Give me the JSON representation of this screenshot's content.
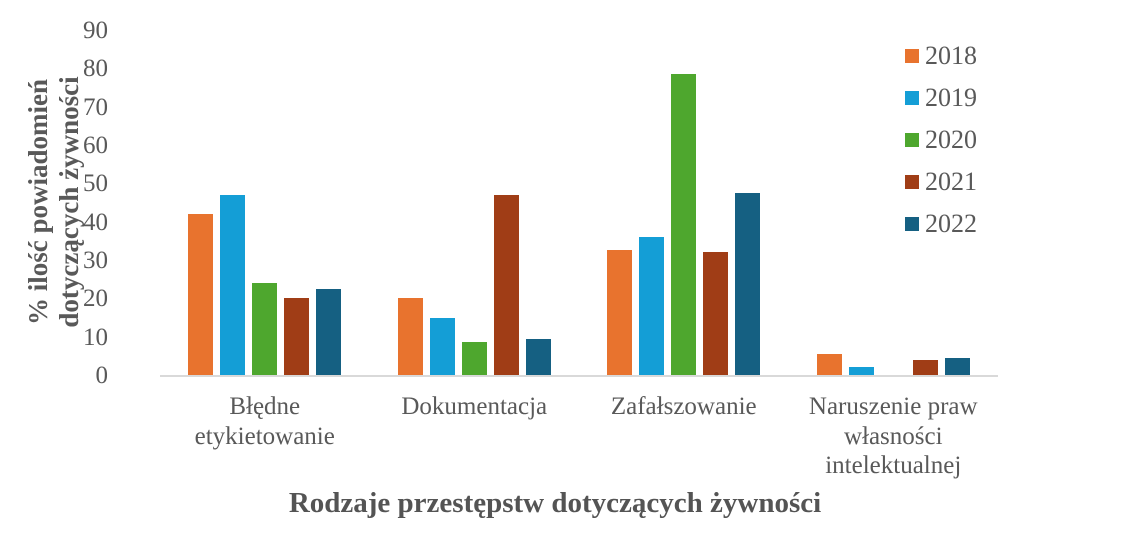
{
  "chart_data": {
    "type": "bar",
    "title": "",
    "xlabel": "Rodzaje przestępstw dotyczących żywności",
    "ylabel": "% ilość powiadomień\ndotyczących żywności",
    "categories": [
      "Błędne\netykietowanie",
      "Dokumentacja",
      "Zafałszowanie",
      "Naruszenie praw\nwłasności\nintelektualnej"
    ],
    "series": [
      {
        "name": "2018",
        "color": "#E8732E",
        "values": [
          42,
          20,
          32.5,
          5.5
        ]
      },
      {
        "name": "2019",
        "color": "#149ED6",
        "values": [
          47,
          15,
          36,
          2
        ]
      },
      {
        "name": "2020",
        "color": "#4EA72E",
        "values": [
          24,
          8.5,
          78.5,
          0
        ]
      },
      {
        "name": "2021",
        "color": "#A03D16",
        "values": [
          20,
          47,
          32,
          4
        ]
      },
      {
        "name": "2022",
        "color": "#156082",
        "values": [
          22.5,
          9.5,
          47.5,
          4.5
        ]
      }
    ],
    "ylim": [
      0,
      90
    ],
    "yticks": [
      0,
      10,
      20,
      30,
      40,
      50,
      60,
      70,
      80,
      90
    ],
    "grid": false,
    "legend_position": "right"
  },
  "colors": {
    "text": "#595959",
    "axis_line": "#D9D9D9",
    "background": "#FFFFFF"
  }
}
